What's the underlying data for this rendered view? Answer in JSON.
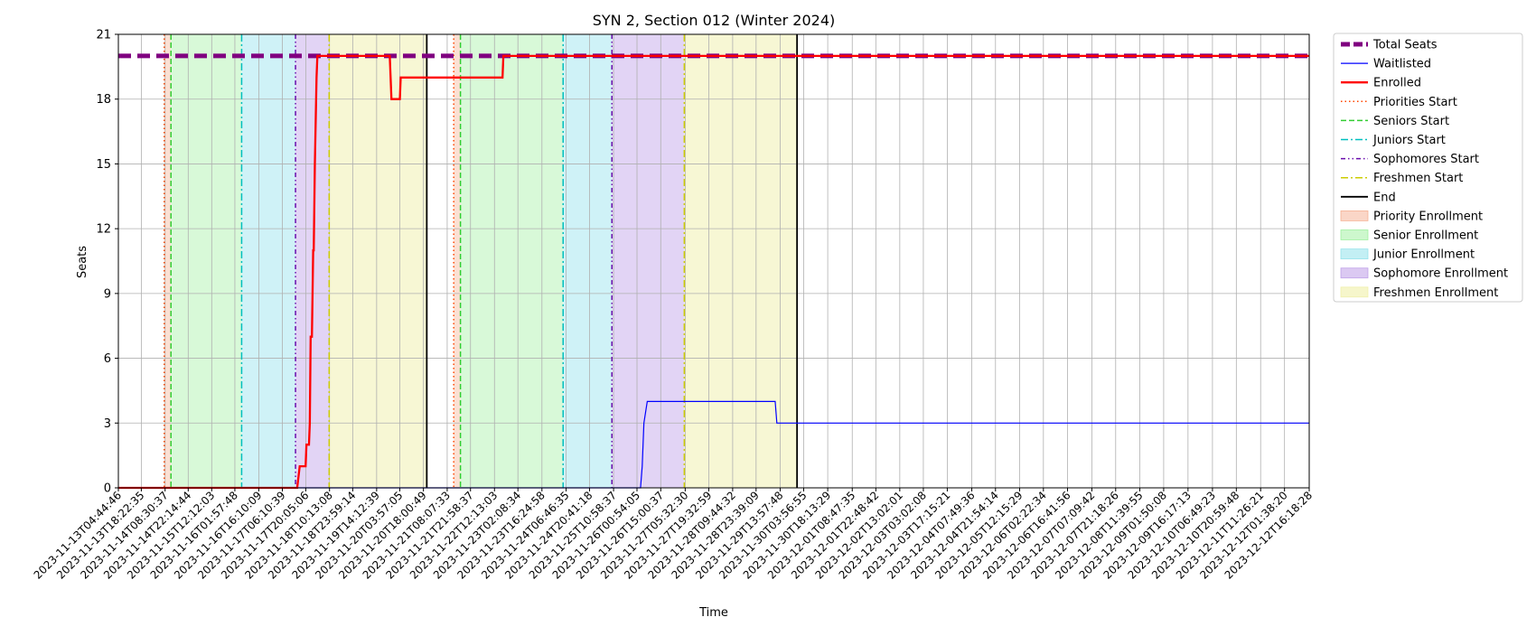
{
  "chart_data": {
    "type": "line",
    "title": "SYN 2, Section 012 (Winter 2024)",
    "xlabel": "Time",
    "ylabel": "Seats",
    "ylim": [
      0,
      21
    ],
    "yticks": [
      0,
      3,
      6,
      9,
      12,
      15,
      18,
      21
    ],
    "x_start": "2023-11-13T04:44:46",
    "x_end": "2023-12-12T16:18:28",
    "xticks": [
      "2023-11-13T04:44:46",
      "2023-11-13T18:22:35",
      "2023-11-14T08:30:37",
      "2023-11-14T22:14:44",
      "2023-11-15T12:12:03",
      "2023-11-16T01:57:48",
      "2023-11-16T16:10:09",
      "2023-11-17T06:10:39",
      "2023-11-17T20:05:06",
      "2023-11-18T10:13:08",
      "2023-11-18T23:59:14",
      "2023-11-19T14:12:39",
      "2023-11-20T03:57:05",
      "2023-11-20T18:00:49",
      "2023-11-21T08:07:33",
      "2023-11-21T21:58:37",
      "2023-11-22T12:13:03",
      "2023-11-23T02:08:34",
      "2023-11-23T16:24:58",
      "2023-11-24T06:46:35",
      "2023-11-24T20:41:18",
      "2023-11-25T10:58:37",
      "2023-11-26T00:54:05",
      "2023-11-26T15:00:37",
      "2023-11-27T05:32:30",
      "2023-11-27T19:32:59",
      "2023-11-28T09:44:32",
      "2023-11-28T23:39:09",
      "2023-11-29T13:57:48",
      "2023-11-30T03:56:55",
      "2023-11-30T18:13:29",
      "2023-12-01T08:47:35",
      "2023-12-01T22:48:42",
      "2023-12-02T13:02:01",
      "2023-12-03T03:02:08",
      "2023-12-03T17:15:21",
      "2023-12-04T07:49:36",
      "2023-12-04T21:54:14",
      "2023-12-05T12:15:29",
      "2023-12-06T02:22:34",
      "2023-12-06T16:41:56",
      "2023-12-07T07:09:42",
      "2023-12-07T21:18:26",
      "2023-12-08T11:39:55",
      "2023-12-09T01:50:08",
      "2023-12-09T16:17:13",
      "2023-12-10T06:49:23",
      "2023-12-10T20:59:48",
      "2023-12-11T11:26:21",
      "2023-12-12T01:38:20",
      "2023-12-12T16:18:28"
    ],
    "grid": true,
    "legend_position": "outside top-right",
    "series": [
      {
        "name": "Total Seats",
        "style": "dashed",
        "color": "#800080",
        "points": [
          [
            "2023-11-13T04:44:46",
            20
          ],
          [
            "2023-12-12T16:18:28",
            20
          ]
        ]
      },
      {
        "name": "Waitlisted",
        "style": "solid",
        "color": "#0000ff",
        "points": [
          [
            "2023-11-13T04:44:46",
            0
          ],
          [
            "2023-11-26T03:00:00",
            0
          ],
          [
            "2023-11-26T04:00:00",
            1
          ],
          [
            "2023-11-26T05:00:00",
            3
          ],
          [
            "2023-11-26T07:00:00",
            4
          ],
          [
            "2023-11-29T11:00:00",
            4
          ],
          [
            "2023-11-29T12:00:00",
            3
          ],
          [
            "2023-12-12T16:18:28",
            3
          ]
        ]
      },
      {
        "name": "Enrolled",
        "style": "solid",
        "color": "#ff0000",
        "points": [
          [
            "2023-11-13T04:44:46",
            0
          ],
          [
            "2023-11-17T15:00:00",
            0
          ],
          [
            "2023-11-17T16:30:00",
            1
          ],
          [
            "2023-11-17T20:00:00",
            1
          ],
          [
            "2023-11-17T20:30:00",
            2
          ],
          [
            "2023-11-17T22:00:00",
            2
          ],
          [
            "2023-11-17T22:30:00",
            3
          ],
          [
            "2023-11-17T23:00:00",
            7
          ],
          [
            "2023-11-17T23:45:00",
            7
          ],
          [
            "2023-11-18T00:30:00",
            11
          ],
          [
            "2023-11-18T00:50:00",
            11
          ],
          [
            "2023-11-18T01:30:00",
            15
          ],
          [
            "2023-11-18T02:30:00",
            19
          ],
          [
            "2023-11-18T03:00:00",
            20
          ],
          [
            "2023-11-19T22:00:00",
            20
          ],
          [
            "2023-11-19T23:00:00",
            18
          ],
          [
            "2023-11-20T04:00:00",
            18
          ],
          [
            "2023-11-20T04:30:00",
            19
          ],
          [
            "2023-11-22T17:00:00",
            19
          ],
          [
            "2023-11-22T17:30:00",
            20
          ],
          [
            "2023-12-12T16:18:28",
            20
          ]
        ]
      }
    ],
    "markers": [
      {
        "name": "Priorities Start",
        "style": "dotted",
        "color": "#ff4500",
        "x": [
          "2023-11-14T08:00:00",
          "2023-11-21T12:00:00"
        ]
      },
      {
        "name": "Seniors Start",
        "style": "dashed",
        "color": "#32cd32",
        "x": [
          "2023-11-14T12:00:00",
          "2023-11-21T16:00:00"
        ]
      },
      {
        "name": "Juniors Start",
        "style": "dashdot",
        "color": "#00bfbf",
        "x": [
          "2023-11-16T06:00:00",
          "2023-11-24T05:00:00"
        ]
      },
      {
        "name": "Sophomores Start",
        "style": "dashdotdot",
        "color": "#6a0dad",
        "x": [
          "2023-11-17T14:00:00",
          "2023-11-25T10:00:00"
        ]
      },
      {
        "name": "Freshmen Start",
        "style": "dashdot",
        "color": "#cccc00",
        "x": [
          "2023-11-18T10:00:00",
          "2023-11-27T05:00:00"
        ]
      },
      {
        "name": "End",
        "style": "solid",
        "color": "#000000",
        "x": [
          "2023-11-20T20:00:00",
          "2023-11-30T00:00:00"
        ]
      }
    ],
    "shaded_periods": [
      {
        "name": "Priority Enrollment",
        "color": "#f4a582",
        "alpha": 0.35,
        "ranges": [
          [
            "2023-11-14T08:00:00",
            "2023-11-14T12:00:00"
          ],
          [
            "2023-11-21T12:00:00",
            "2023-11-21T16:00:00"
          ]
        ]
      },
      {
        "name": "Senior Enrollment",
        "color": "#90ee90",
        "alpha": 0.35,
        "ranges": [
          [
            "2023-11-14T12:00:00",
            "2023-11-16T06:00:00"
          ],
          [
            "2023-11-21T16:00:00",
            "2023-11-24T05:00:00"
          ]
        ]
      },
      {
        "name": "Junior Enrollment",
        "color": "#87dfea",
        "alpha": 0.4,
        "ranges": [
          [
            "2023-11-16T06:00:00",
            "2023-11-17T14:00:00"
          ],
          [
            "2023-11-24T05:00:00",
            "2023-11-25T10:00:00"
          ]
        ]
      },
      {
        "name": "Sophomore Enrollment",
        "color": "#b794e6",
        "alpha": 0.4,
        "ranges": [
          [
            "2023-11-17T14:00:00",
            "2023-11-18T10:00:00"
          ],
          [
            "2023-11-25T10:00:00",
            "2023-11-27T05:00:00"
          ]
        ]
      },
      {
        "name": "Freshmen Enrollment",
        "color": "#eeeea0",
        "alpha": 0.45,
        "ranges": [
          [
            "2023-11-18T10:00:00",
            "2023-11-20T20:00:00"
          ],
          [
            "2023-11-27T05:00:00",
            "2023-11-30T00:00:00"
          ]
        ]
      }
    ]
  }
}
